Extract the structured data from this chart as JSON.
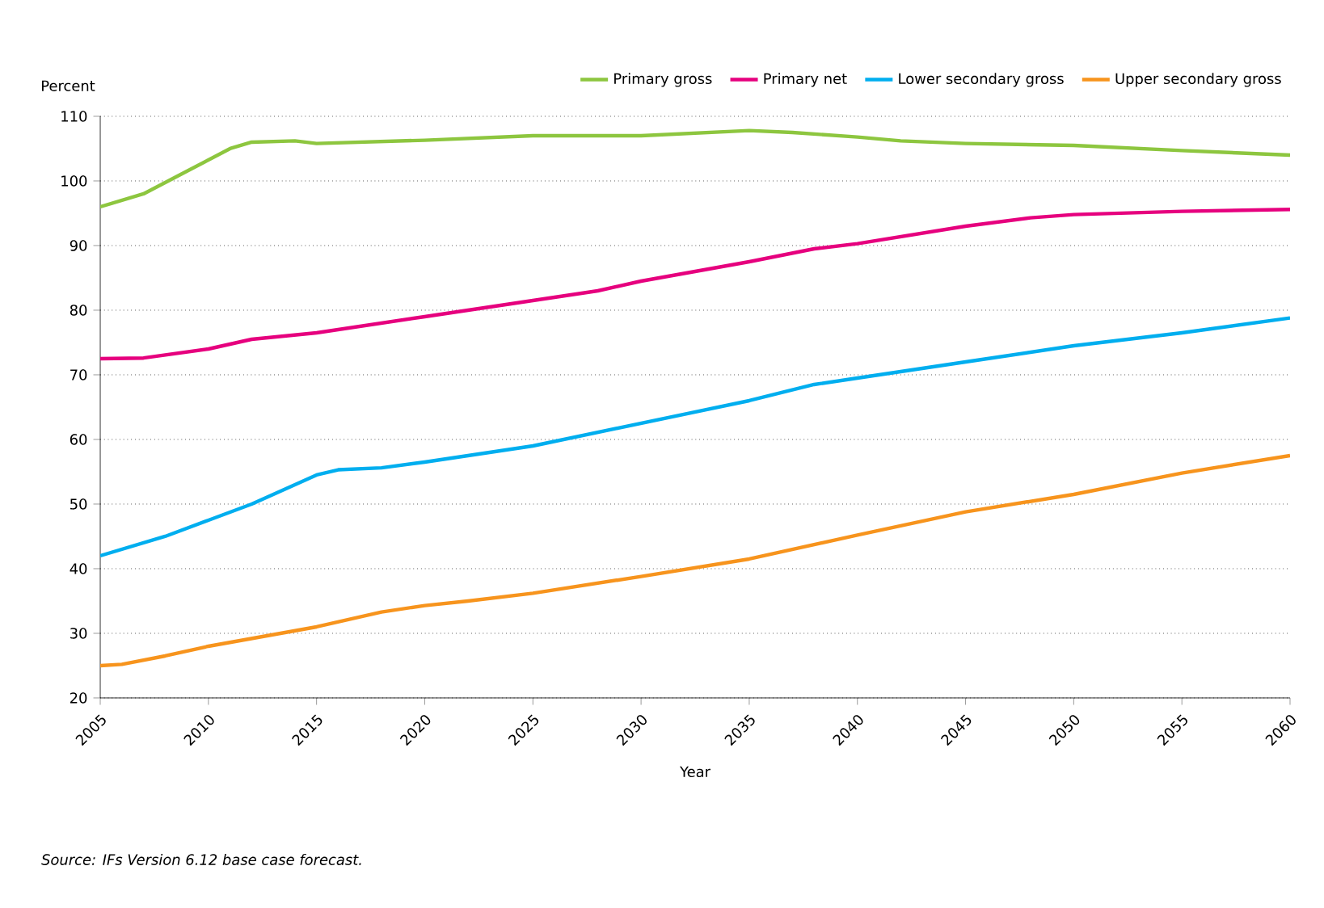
{
  "chart_data": {
    "type": "line",
    "xlabel": "Year",
    "ylabel": "Percent",
    "xlim": [
      2005,
      2060
    ],
    "ylim": [
      20,
      110
    ],
    "xticks": [
      2005,
      2010,
      2015,
      2020,
      2025,
      2030,
      2035,
      2040,
      2045,
      2050,
      2055,
      2060
    ],
    "yticks": [
      20,
      30,
      40,
      50,
      60,
      70,
      80,
      90,
      100,
      110
    ],
    "grid": "y",
    "legend": "top",
    "annotations": [
      "Source: IFs Version 6.12 base case forecast."
    ],
    "series": [
      {
        "name": "Primary gross",
        "color": "#8dc63f",
        "x": [
          2005,
          2007,
          2009,
          2011,
          2012,
          2014,
          2015,
          2020,
          2025,
          2030,
          2035,
          2037,
          2040,
          2042,
          2045,
          2050,
          2055,
          2060
        ],
        "values": [
          96,
          98,
          101.5,
          105,
          106,
          106.2,
          105.8,
          106.3,
          107,
          107,
          107.8,
          107.5,
          106.8,
          106.2,
          105.8,
          105.5,
          104.7,
          104
        ]
      },
      {
        "name": "Primary net",
        "color": "#e6007e",
        "x": [
          2005,
          2007,
          2010,
          2012,
          2015,
          2020,
          2025,
          2028,
          2030,
          2035,
          2038,
          2040,
          2045,
          2048,
          2050,
          2055,
          2060
        ],
        "values": [
          72.5,
          72.6,
          74,
          75.5,
          76.5,
          79,
          81.5,
          83,
          84.5,
          87.5,
          89.5,
          90.3,
          93,
          94.3,
          94.8,
          95.3,
          95.6
        ]
      },
      {
        "name": "Lower secondary gross",
        "color": "#00aeef",
        "x": [
          2005,
          2008,
          2010,
          2012,
          2015,
          2016,
          2018,
          2020,
          2025,
          2030,
          2035,
          2038,
          2040,
          2045,
          2050,
          2055,
          2060
        ],
        "values": [
          42,
          45,
          47.5,
          50,
          54.5,
          55.3,
          55.6,
          56.5,
          59,
          62.5,
          66,
          68.5,
          69.5,
          72,
          74.5,
          76.5,
          78.8
        ]
      },
      {
        "name": "Upper secondary gross",
        "color": "#f7941d",
        "x": [
          2005,
          2006,
          2008,
          2010,
          2015,
          2018,
          2020,
          2022,
          2025,
          2030,
          2035,
          2040,
          2045,
          2050,
          2055,
          2060
        ],
        "values": [
          25,
          25.2,
          26.5,
          28,
          31,
          33.3,
          34.3,
          35,
          36.2,
          38.8,
          41.5,
          45.2,
          48.8,
          51.5,
          54.8,
          57.5
        ]
      }
    ]
  }
}
